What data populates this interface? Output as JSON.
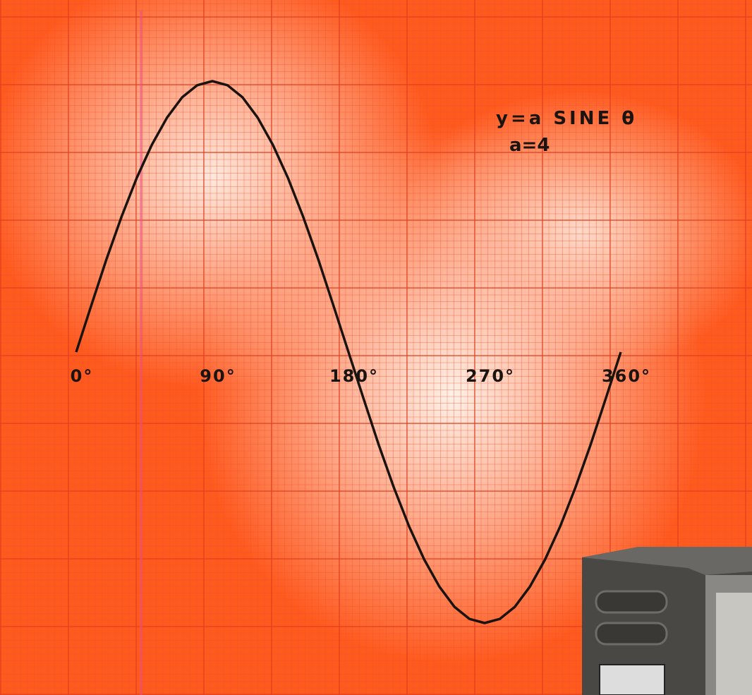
{
  "chart_data": {
    "type": "line",
    "annotations": [
      "y=a SINE θ",
      "a=4"
    ],
    "x": [
      0,
      10,
      20,
      30,
      40,
      50,
      60,
      70,
      80,
      90,
      100,
      110,
      120,
      130,
      140,
      150,
      160,
      170,
      180,
      190,
      200,
      210,
      220,
      230,
      240,
      250,
      260,
      270,
      280,
      290,
      300,
      310,
      320,
      330,
      340,
      350,
      360
    ],
    "series": [
      {
        "color": "#1a1410",
        "values": [
          0,
          0.69,
          1.37,
          2,
          2.57,
          3.06,
          3.46,
          3.76,
          3.94,
          4,
          3.94,
          3.76,
          3.46,
          3.06,
          2.57,
          2,
          1.37,
          0.69,
          0,
          -0.69,
          -1.37,
          -2,
          -2.57,
          -3.06,
          -3.46,
          -3.76,
          -3.94,
          -4,
          -3.94,
          -3.76,
          -3.46,
          -3.06,
          -2.57,
          -2,
          -1.37,
          -0.69,
          0
        ]
      }
    ],
    "xlim": [
      0,
      360
    ],
    "ylim": [
      -4,
      4
    ],
    "xticks": [
      {
        "value": 0,
        "label": "0°"
      },
      {
        "value": 90,
        "label": "90°"
      },
      {
        "value": 180,
        "label": "180°"
      },
      {
        "value": 270,
        "label": "270°"
      },
      {
        "value": 360,
        "label": "360°"
      }
    ]
  }
}
